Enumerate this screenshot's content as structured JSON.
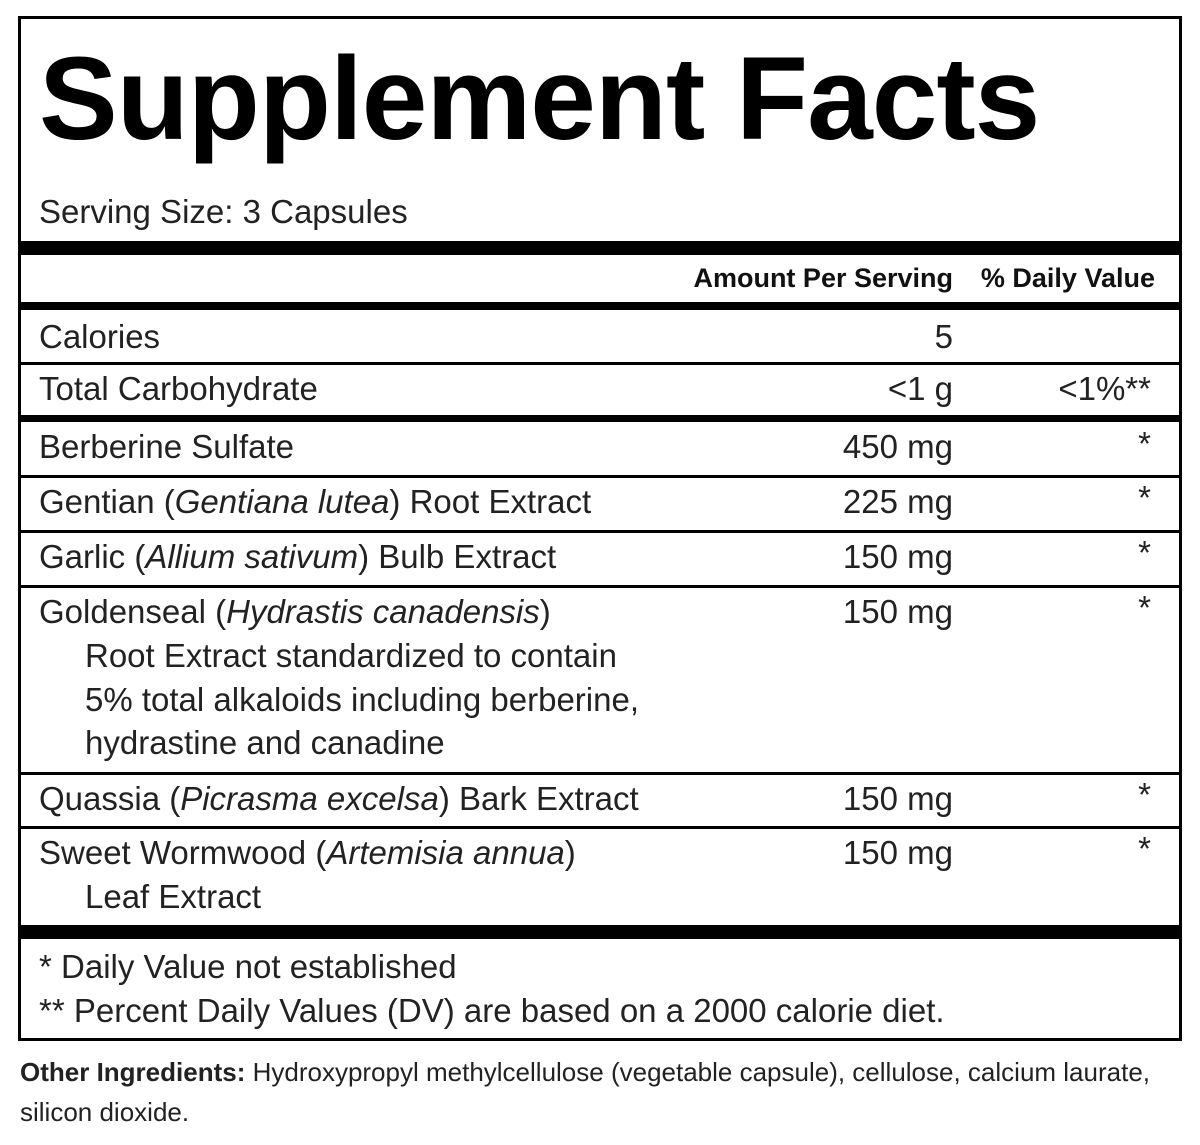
{
  "title": "Supplement Facts",
  "serving_size": "Serving Size: 3 Capsules",
  "header": {
    "amount": "Amount Per Serving",
    "daily_value": "% Daily Value"
  },
  "rows": [
    {
      "name": "Calories",
      "amount": "5",
      "dv": ""
    },
    {
      "name": "Total Carbohydrate",
      "amount": "<1 g",
      "dv": "<1%**"
    },
    {
      "name": "Berberine Sulfate",
      "amount": "450 mg",
      "dv": "*"
    },
    {
      "name_pre": "Gentian (",
      "name_italic": "Gentiana lutea",
      "name_post": ") Root Extract",
      "amount": "225 mg",
      "dv": "*"
    },
    {
      "name_pre": "Garlic (",
      "name_italic": "Allium sativum",
      "name_post": ") Bulb Extract",
      "amount": "150 mg",
      "dv": "*"
    },
    {
      "name_pre": "Goldenseal (",
      "name_italic": "Hydrastis canadensis",
      "name_post": ")",
      "sub": [
        "Root Extract standardized to contain",
        "5% total alkaloids including berberine,",
        "hydrastine and canadine"
      ],
      "amount": "150 mg",
      "dv": "*"
    },
    {
      "name_pre": "Quassia (",
      "name_italic": "Picrasma excelsa",
      "name_post": ") Bark Extract",
      "amount": "150 mg",
      "dv": "*"
    },
    {
      "name_pre": "Sweet Wormwood (",
      "name_italic": "Artemisia annua",
      "name_post": ")",
      "sub": [
        "Leaf Extract"
      ],
      "amount": "150 mg",
      "dv": "*"
    }
  ],
  "footnotes": [
    "* Daily Value not established",
    "** Percent Daily Values (DV) are based on a 2000 calorie diet."
  ],
  "other_ingredients": {
    "label": "Other Ingredients:",
    "text": " Hydroxypropyl methylcellulose (vegetable capsule), cellulose, calcium laurate, silicon dioxide."
  }
}
